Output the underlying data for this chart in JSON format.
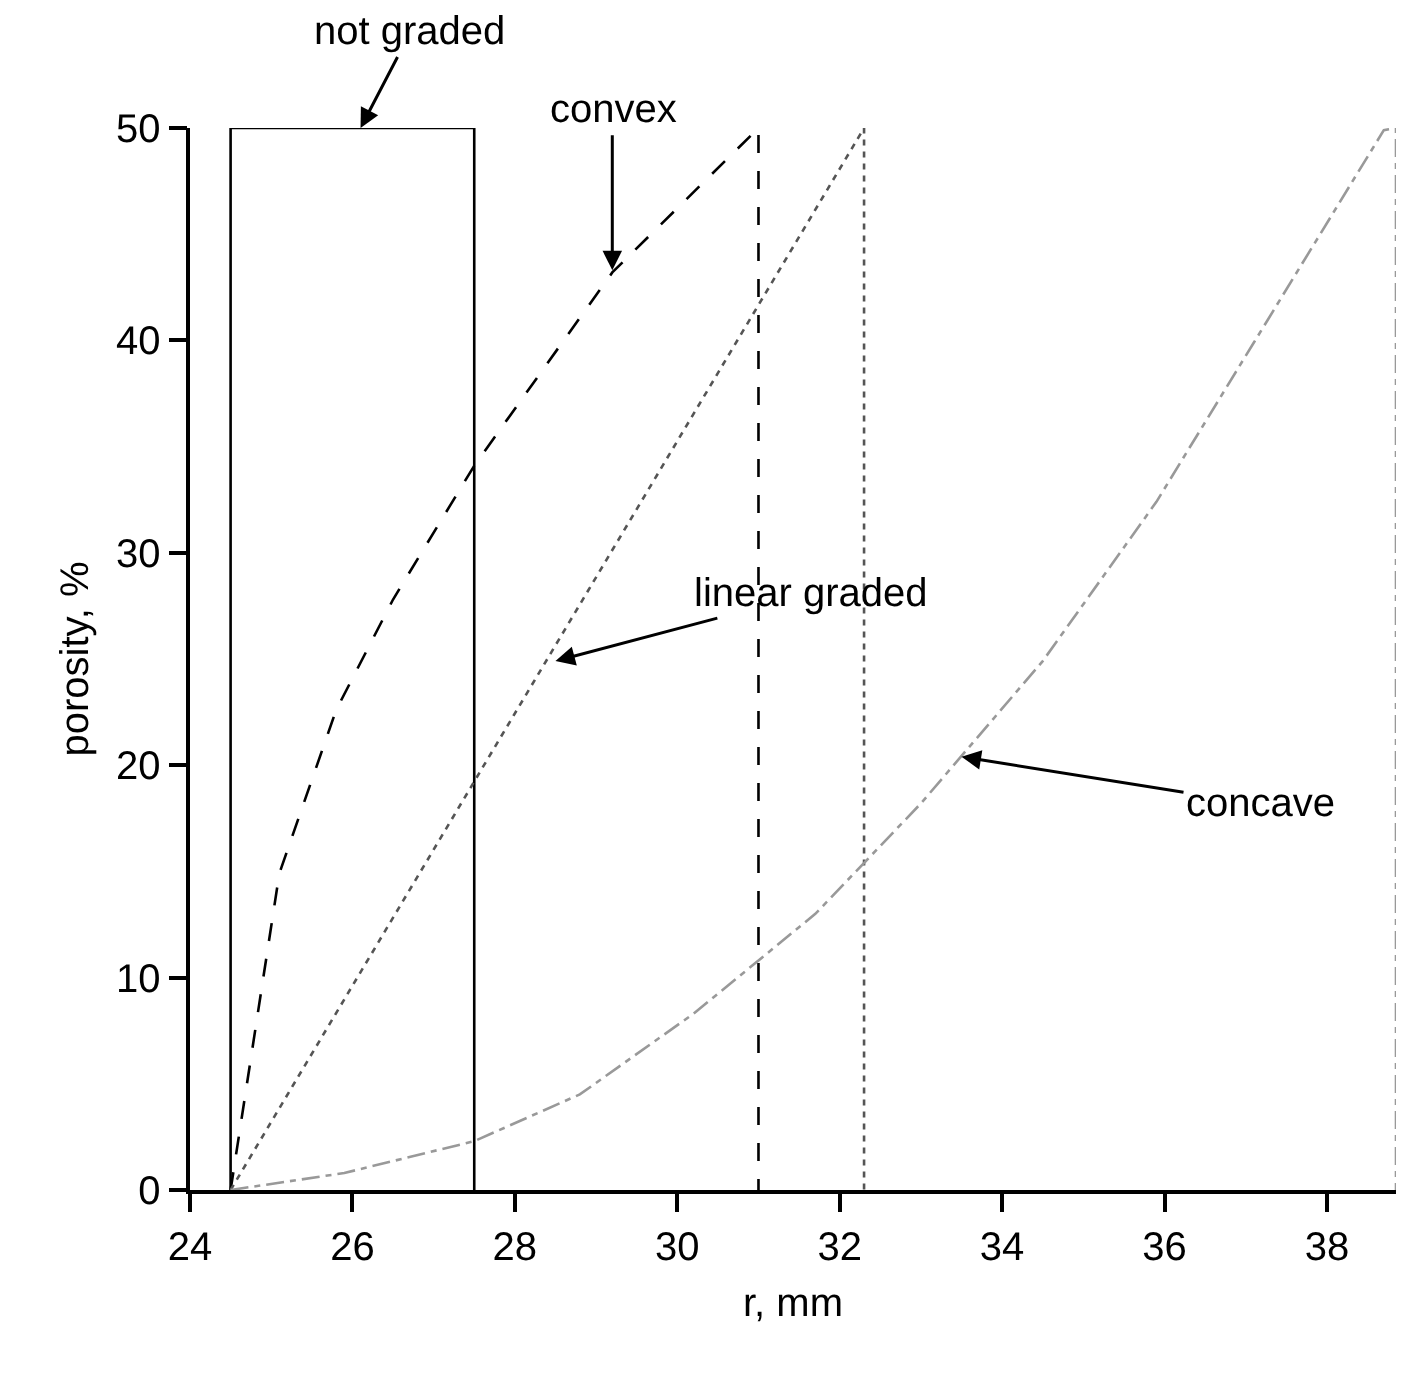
{
  "chart_data": {
    "type": "line",
    "xlabel": "r, mm",
    "ylabel": "porosity, %",
    "xlim": [
      24,
      38.85
    ],
    "xticks": [
      24,
      26,
      28,
      30,
      32,
      34,
      36,
      38
    ],
    "ylim": [
      0,
      50
    ],
    "yticks": [
      0,
      10,
      20,
      30,
      40,
      50
    ],
    "grid": false,
    "marker": "none",
    "series": [
      {
        "color": "#000000",
        "line_style": "solid",
        "x": [
          24.5,
          24.5,
          27.5,
          27.5
        ],
        "values": [
          0,
          50,
          50,
          0
        ]
      },
      {
        "color": "#000000",
        "line_style": "dashed",
        "x": [
          24.5,
          25.1,
          25.8,
          26.5,
          27.5,
          29.2,
          31,
          31
        ],
        "values": [
          0,
          14.9,
          22.6,
          27.8,
          34.1,
          43.2,
          50,
          0
        ]
      },
      {
        "color": "#555555",
        "line_style": "dotted",
        "x": [
          24.5,
          32.3,
          32.3
        ],
        "values": [
          0,
          50,
          0
        ]
      },
      {
        "color": "#999999",
        "line_style": "dashdot",
        "x": [
          24.5,
          25.9,
          27.5,
          28.8,
          30.2,
          31.7,
          33,
          34.5,
          35.9,
          37.1,
          38.7,
          38.85,
          38.85
        ],
        "values": [
          0,
          0.8,
          2.3,
          4.5,
          8.3,
          13,
          18.2,
          24.9,
          32.4,
          39.9,
          49.9,
          50,
          0
        ]
      }
    ],
    "annotations": [
      {
        "text": "not graded",
        "x": 26.1,
        "y": 50
      },
      {
        "text": "convex",
        "x": 29.2,
        "y": 43.3
      },
      {
        "text": "linear graded",
        "x": 28.5,
        "y": 24.9
      },
      {
        "text": "concave",
        "x": 33.5,
        "y": 20.4
      }
    ]
  }
}
